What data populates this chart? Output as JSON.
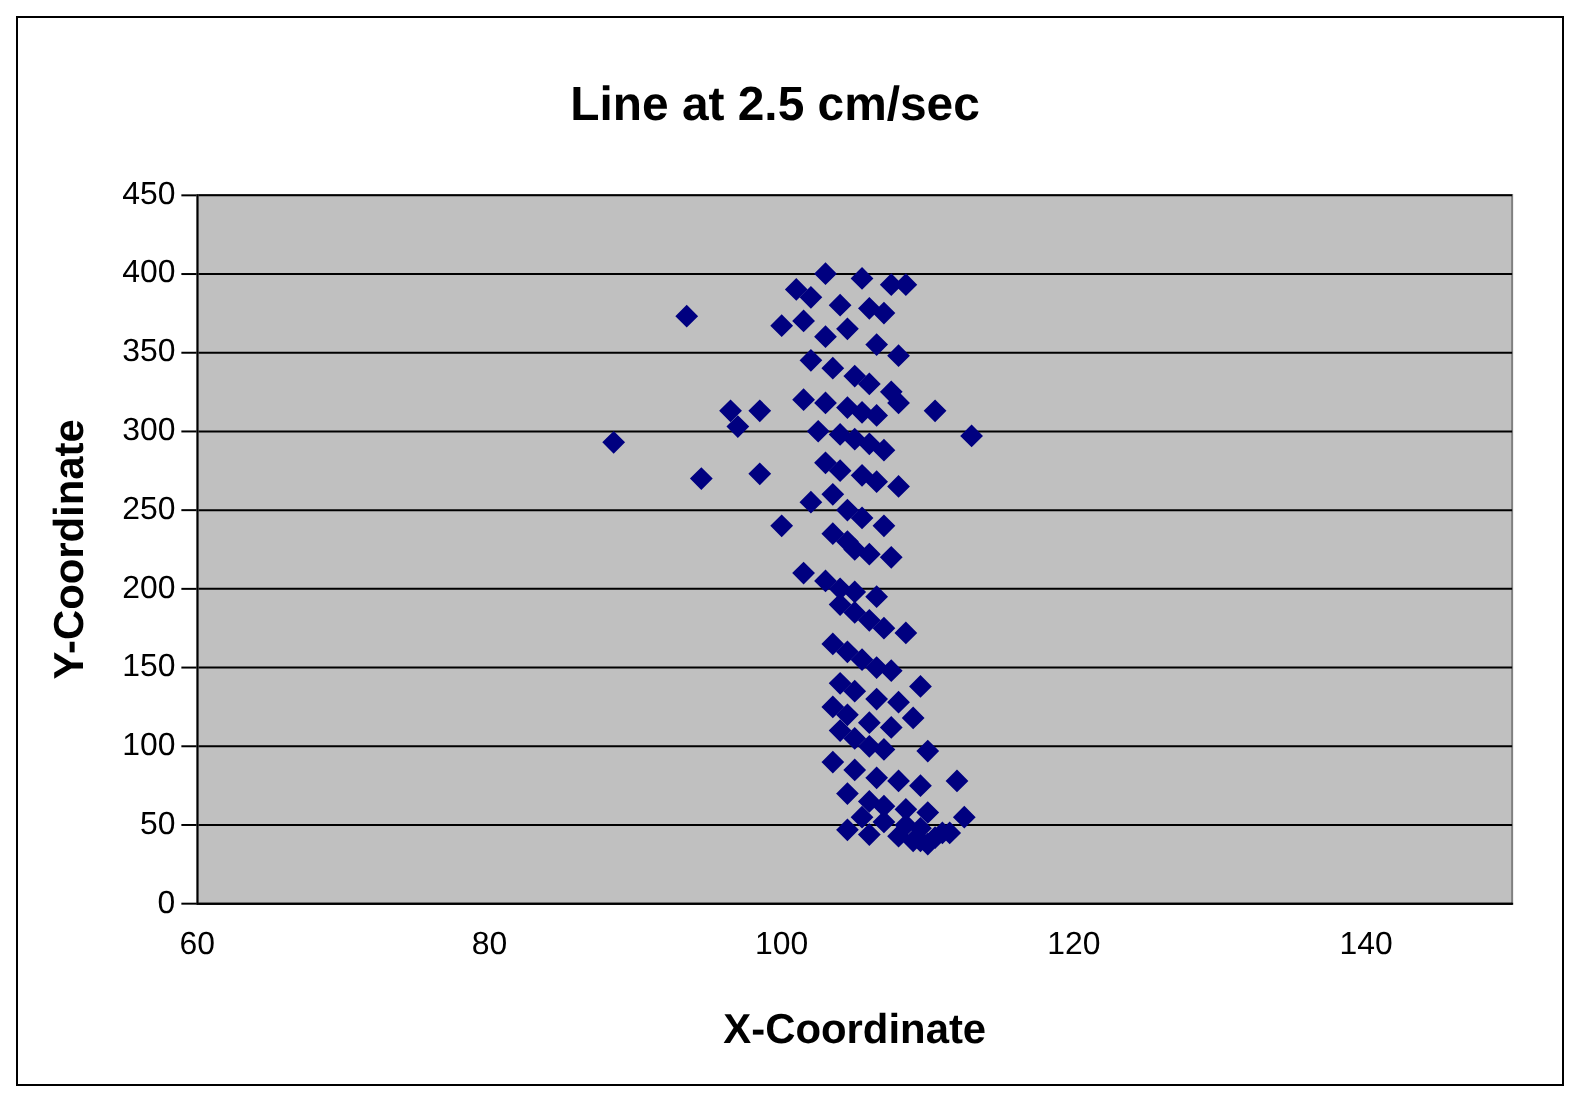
{
  "chart_data": {
    "type": "scatter",
    "title": "Line at 2.5 cm/sec",
    "xlabel": "X-Coordinate",
    "ylabel": "Y-Coordinate",
    "xlim": [
      60,
      150
    ],
    "xticks": [
      60,
      80,
      100,
      120,
      140
    ],
    "ylim": [
      0,
      450
    ],
    "yticks": [
      0,
      50,
      100,
      150,
      200,
      250,
      300,
      350,
      400,
      450
    ],
    "grid": "y",
    "marker": "diamond",
    "legend": false,
    "series": [
      {
        "color": "#000080",
        "x": [
          88.5,
          93.5,
          94.5,
          96.5,
          97,
          98.5,
          98.5,
          100,
          110.5,
          113,
          103,
          105.5,
          107.5,
          108.5,
          101,
          102,
          104,
          106,
          107,
          100,
          101.5,
          103,
          104.5,
          106.5,
          108,
          102,
          103.5,
          105,
          106,
          107.5,
          101.5,
          103,
          104.5,
          105.5,
          106.5,
          108,
          102.5,
          104,
          105,
          106,
          107,
          103,
          104,
          105.5,
          106.5,
          108,
          102,
          103.5,
          104.5,
          105.5,
          107,
          103.5,
          104.5,
          105,
          106,
          107.5,
          101.5,
          103,
          104,
          105,
          106.5,
          104,
          105,
          106,
          107,
          108.5,
          103.5,
          104.5,
          105.5,
          106.5,
          107.5,
          104,
          105,
          106.5,
          108,
          109.5,
          103.5,
          104.5,
          106,
          107.5,
          109,
          104,
          105,
          106,
          107,
          110,
          103.5,
          105,
          106.5,
          108,
          109.5,
          104.5,
          106,
          107,
          108.5,
          110,
          105.5,
          107,
          108.5,
          109.5,
          111,
          104.5,
          106,
          108,
          109.5,
          110.5,
          111.5,
          112,
          112.5,
          110,
          109
        ],
        "values": [
          293,
          373,
          270,
          313,
          303,
          313,
          273,
          240,
          313,
          297,
          400,
          397,
          393,
          393,
          390,
          385,
          380,
          378,
          375,
          367,
          370,
          360,
          365,
          355,
          348,
          345,
          340,
          335,
          330,
          325,
          320,
          318,
          315,
          312,
          310,
          318,
          300,
          298,
          295,
          292,
          288,
          280,
          275,
          272,
          268,
          265,
          255,
          260,
          250,
          245,
          240,
          235,
          230,
          225,
          222,
          220,
          210,
          205,
          200,
          198,
          195,
          190,
          185,
          180,
          175,
          172,
          165,
          160,
          155,
          150,
          148,
          140,
          135,
          130,
          128,
          138,
          125,
          120,
          115,
          112,
          118,
          110,
          105,
          100,
          98,
          97,
          90,
          85,
          80,
          78,
          75,
          70,
          65,
          62,
          60,
          58,
          55,
          52,
          50,
          48,
          45,
          47,
          44,
          43,
          40,
          42,
          45,
          78,
          55,
          38,
          40
        ]
      }
    ]
  }
}
